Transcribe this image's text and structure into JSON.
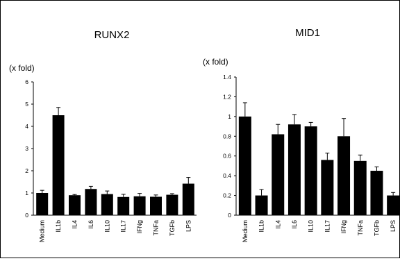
{
  "chart_data": [
    {
      "type": "bar",
      "title": "RUNX2",
      "unit_label": "(x fold)",
      "categories": [
        "Medium",
        "IL1b",
        "IL4",
        "IL6",
        "IL10",
        "IL17",
        "IFNg",
        "TNFa",
        "TGFb",
        "LPS"
      ],
      "values": [
        1.0,
        4.5,
        0.9,
        1.18,
        0.95,
        0.82,
        0.85,
        0.83,
        0.92,
        1.42
      ],
      "errors": [
        0.12,
        0.35,
        0.03,
        0.12,
        0.14,
        0.12,
        0.13,
        0.08,
        0.05,
        0.28
      ],
      "ylim": [
        0,
        6
      ],
      "yticks": [
        "0",
        "1",
        "2",
        "3",
        "4",
        "5",
        "6"
      ],
      "bar_color": "#000000",
      "grid": false
    },
    {
      "type": "bar",
      "title": "MID1",
      "unit_label": "(x fold)",
      "categories": [
        "Medium",
        "IL1b",
        "IL4",
        "IL6",
        "IL10",
        "IL17",
        "IFNg",
        "TNFa",
        "TGFb",
        "LPS"
      ],
      "values": [
        1.0,
        0.2,
        0.82,
        0.92,
        0.9,
        0.56,
        0.8,
        0.55,
        0.45,
        0.2
      ],
      "errors": [
        0.14,
        0.06,
        0.1,
        0.1,
        0.04,
        0.07,
        0.18,
        0.06,
        0.04,
        0.03
      ],
      "ylim": [
        0,
        1.4
      ],
      "yticks": [
        "0",
        "0.2",
        "0.4",
        "0.6",
        "0.8",
        "1",
        "1.2",
        "1.4"
      ],
      "bar_color": "#000000",
      "grid": false
    }
  ]
}
